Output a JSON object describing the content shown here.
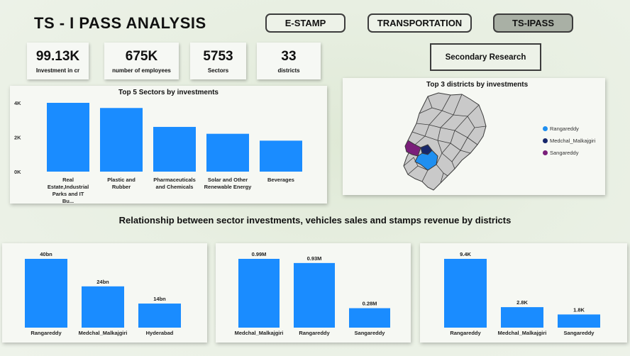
{
  "header": {
    "title": "TS - I PASS ANALYSIS"
  },
  "nav": {
    "estamp": "E-STAMP",
    "transportation": "TRANSPORTATION",
    "tsipass": "TS-IPASS",
    "secondary_research": "Secondary Research"
  },
  "kpis": [
    {
      "value": "99.13K",
      "label": "Investment in cr"
    },
    {
      "value": "675K",
      "label": "number of employees"
    },
    {
      "value": "5753",
      "label": "Sectors"
    },
    {
      "value": "33",
      "label": "districts"
    }
  ],
  "map": {
    "title": "Top 3 districts by investments",
    "legend": [
      {
        "name": "Rangareddy",
        "color": "#1f8ff0"
      },
      {
        "name": "Medchal_Malkajgiri",
        "color": "#17276b"
      },
      {
        "name": "Sangareddy",
        "color": "#7a1f7a"
      }
    ]
  },
  "section_title": "Relationship between sector investments, vehicles sales and stamps revenue by districts",
  "colors": {
    "bar": "#1a8cff",
    "active_nav": "#a9b0a5"
  },
  "chart_data": [
    {
      "type": "bar",
      "title": "Top 5 Sectors by investments",
      "categories": [
        "Real Estate,Industrial Parks and IT Bu...",
        "Plastic and Rubber",
        "Pharmaceuticals and Chemicals",
        "Solar and Other Renewable Energy",
        "Beverages"
      ],
      "values": [
        4000,
        3700,
        2600,
        2200,
        1800
      ],
      "yticks": [
        "4K",
        "2K",
        "0K"
      ],
      "ylim": [
        0,
        4000
      ],
      "grid": false
    },
    {
      "type": "bar",
      "title": "",
      "categories": [
        "Rangareddy",
        "Medchal_Malkajgiri",
        "Hyderabad"
      ],
      "values": [
        40,
        24,
        14
      ],
      "data_labels": [
        "40bn",
        "24bn",
        "14bn"
      ],
      "ylim": [
        0,
        40
      ]
    },
    {
      "type": "bar",
      "title": "",
      "categories": [
        "Medchal_Malkajgiri",
        "Rangareddy",
        "Sangareddy"
      ],
      "values": [
        0.99,
        0.93,
        0.28
      ],
      "data_labels": [
        "0.99M",
        "0.93M",
        "0.28M"
      ],
      "ylim": [
        0,
        0.99
      ]
    },
    {
      "type": "bar",
      "title": "",
      "categories": [
        "Rangareddy",
        "Medchal_Malkajgiri",
        "Sangareddy"
      ],
      "values": [
        9.4,
        2.8,
        1.8
      ],
      "data_labels": [
        "9.4K",
        "2.8K",
        "1.8K"
      ],
      "ylim": [
        0,
        9.4
      ]
    }
  ]
}
